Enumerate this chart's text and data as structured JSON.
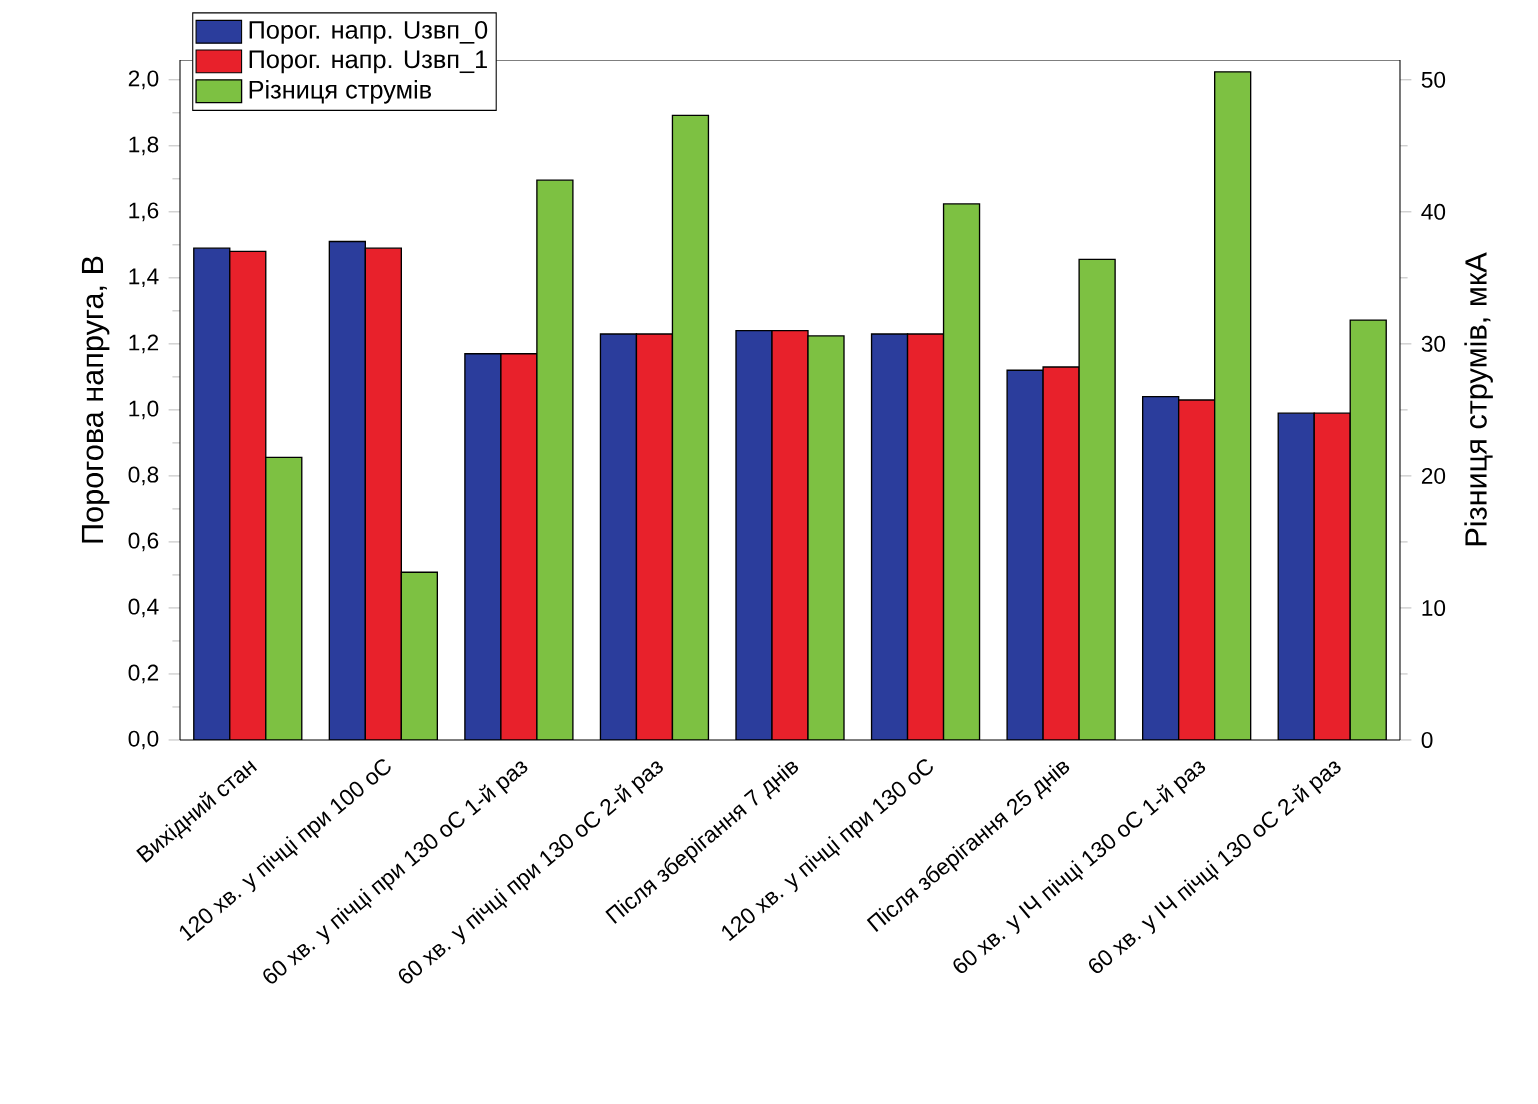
{
  "chart_data": {
    "type": "bar",
    "categories": [
      "Вихідний стан",
      "120 хв. у пічці при 100 оС",
      "60 хв. у пічці при 130 оС 1-й раз",
      "60 хв. у пічці при 130 оС 2-й раз",
      "Після зберігання 7 днів",
      "120 хв. у пічці при 130 оС",
      "Після зберігання 25 днів",
      "60 хв. у ІЧ пічці 130 оС 1-й раз",
      "60 хв. у ІЧ пічці 130 оС 2-й раз"
    ],
    "series": [
      {
        "name": "Порог. напр. Uзвп_0",
        "color": "#2b3d9c",
        "values": [
          1.49,
          1.51,
          1.17,
          1.23,
          1.24,
          1.23,
          1.12,
          1.04,
          0.99
        ]
      },
      {
        "name": "Порог. напр. Uзвп_1",
        "color": "#e8212b",
        "values": [
          1.48,
          1.49,
          1.17,
          1.23,
          1.24,
          1.23,
          1.13,
          1.03,
          0.99
        ]
      },
      {
        "name": "Різниця струмів",
        "color": "#7dc142",
        "axis": "y2",
        "values": [
          21.4,
          12.7,
          42.4,
          47.3,
          30.6,
          40.6,
          36.4,
          50.6,
          31.8
        ]
      }
    ],
    "ylabel": "Порогова напруга, В",
    "y2label": "Різниця струмів, мкА",
    "ylim": [
      0,
      2.06
    ],
    "yticks": [
      {
        "value": 0,
        "label": "0,0"
      },
      {
        "value": 0.2,
        "label": "0,2"
      },
      {
        "value": 0.4,
        "label": "0,4"
      },
      {
        "value": 0.6,
        "label": "0,6"
      },
      {
        "value": 0.8,
        "label": "0,8"
      },
      {
        "value": 1.0,
        "label": "1,0"
      },
      {
        "value": 1.2,
        "label": "1,2"
      },
      {
        "value": 1.4,
        "label": "1,4"
      },
      {
        "value": 1.6,
        "label": "1,6"
      },
      {
        "value": 1.8,
        "label": "1,8"
      },
      {
        "value": 2.0,
        "label": "2,0"
      }
    ],
    "y2lim": [
      0,
      51.5
    ],
    "y2ticks": [
      0,
      10,
      20,
      30,
      40,
      50
    ],
    "legend": "top left"
  }
}
